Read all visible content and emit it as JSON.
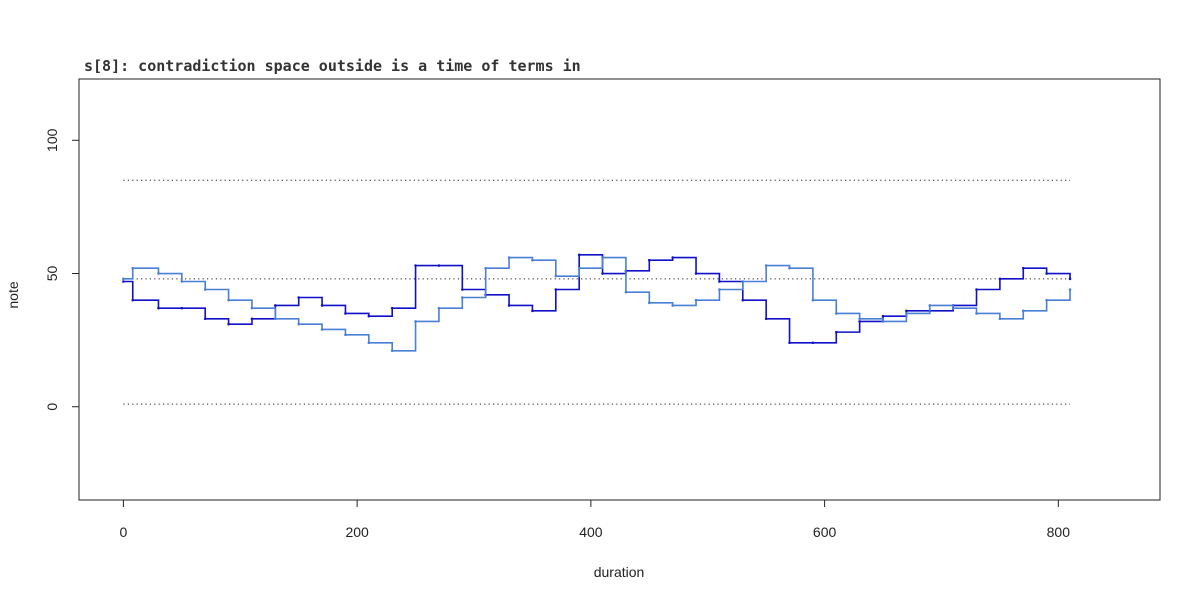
{
  "chart_data": {
    "type": "line",
    "title": "s[8]: contradiction space outside is a time of terms in",
    "xlabel": "duration",
    "ylabel": "note",
    "xlim": [
      -38,
      887
    ],
    "ylim": [
      -35,
      123
    ],
    "x_ticks": [
      {
        "value": 0,
        "label": "0"
      },
      {
        "value": 200,
        "label": "200"
      },
      {
        "value": 400,
        "label": "400"
      },
      {
        "value": 600,
        "label": "600"
      },
      {
        "value": 800,
        "label": "800"
      }
    ],
    "y_ticks": [
      {
        "value": 0,
        "label": "0"
      },
      {
        "value": 50,
        "label": "50"
      },
      {
        "value": 100,
        "label": "100"
      }
    ],
    "reference_lines": [
      {
        "y": 85,
        "x_from": 0,
        "x_to": 810,
        "style": "dotted"
      },
      {
        "y": 48,
        "x_from": 0,
        "x_to": 810,
        "style": "dotted"
      },
      {
        "y": 1,
        "x_from": 0,
        "x_to": 810,
        "style": "dotted"
      }
    ],
    "series": [
      {
        "color": "#1010c8",
        "style": "step",
        "x": [
          0,
          8,
          30,
          50,
          70,
          90,
          110,
          130,
          150,
          170,
          190,
          210,
          230,
          250,
          270,
          290,
          310,
          330,
          350,
          370,
          390,
          410,
          430,
          450,
          470,
          490,
          510,
          530,
          550,
          570,
          590,
          610,
          630,
          650,
          670,
          690,
          710,
          730,
          750,
          770,
          790,
          810
        ],
        "y": [
          47,
          40,
          37,
          37,
          33,
          31,
          33,
          38,
          41,
          38,
          35,
          34,
          37,
          53,
          53,
          44,
          42,
          38,
          36,
          44,
          57,
          50,
          51,
          55,
          56,
          50,
          47,
          40,
          33,
          24,
          24,
          28,
          32,
          34,
          36,
          36,
          38,
          44,
          48,
          52,
          50,
          48
        ]
      },
      {
        "color": "#4a7fd6",
        "style": "step",
        "x": [
          0,
          8,
          30,
          50,
          70,
          90,
          110,
          130,
          150,
          170,
          190,
          210,
          230,
          250,
          270,
          290,
          310,
          330,
          350,
          370,
          390,
          410,
          430,
          450,
          470,
          490,
          510,
          530,
          550,
          570,
          590,
          610,
          630,
          650,
          670,
          690,
          710,
          730,
          750,
          770,
          790,
          810
        ],
        "y": [
          48,
          52,
          50,
          47,
          44,
          40,
          37,
          33,
          31,
          29,
          27,
          24,
          21,
          32,
          37,
          41,
          52,
          56,
          55,
          49,
          52,
          56,
          43,
          39,
          38,
          40,
          44,
          47,
          53,
          52,
          40,
          35,
          33,
          32,
          35,
          38,
          37,
          35,
          33,
          36,
          40,
          44
        ]
      }
    ]
  }
}
